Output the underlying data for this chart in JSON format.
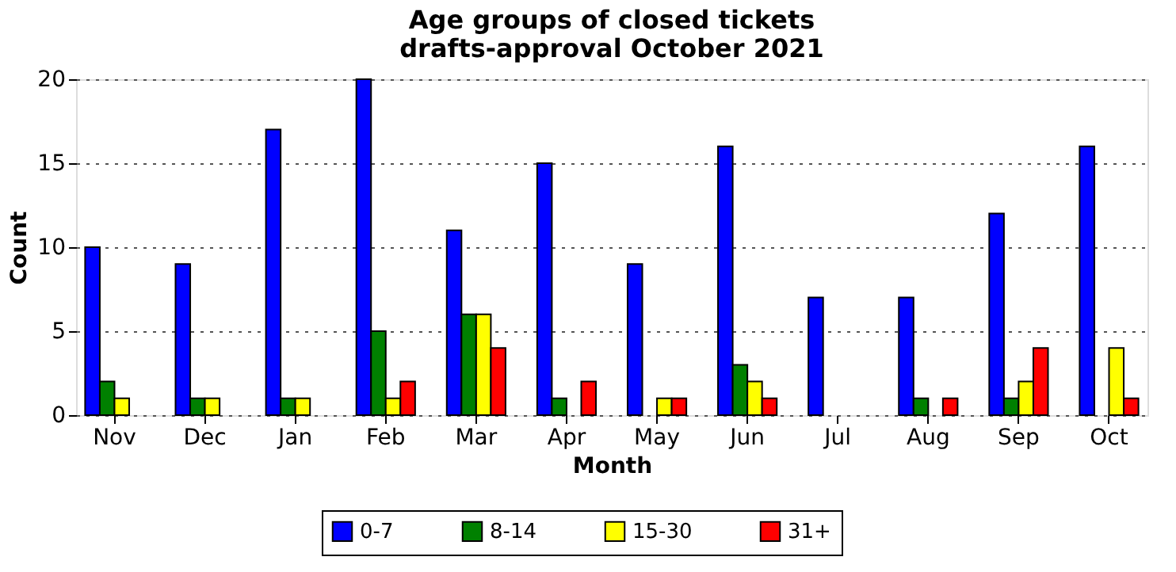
{
  "chart_data": {
    "type": "bar",
    "title": "Age groups of closed tickets\ndrafts-approval October 2021",
    "xlabel": "Month",
    "ylabel": "Count",
    "categories": [
      "Nov",
      "Dec",
      "Jan",
      "Feb",
      "Mar",
      "Apr",
      "May",
      "Jun",
      "Jul",
      "Aug",
      "Sep",
      "Oct"
    ],
    "series": [
      {
        "name": "0-7",
        "color": "#0000ff",
        "values": [
          10,
          9,
          17,
          20,
          11,
          15,
          9,
          16,
          7,
          7,
          12,
          16
        ]
      },
      {
        "name": "8-14",
        "color": "#008000",
        "values": [
          2,
          1,
          1,
          5,
          6,
          1,
          0,
          3,
          0,
          1,
          1,
          0
        ]
      },
      {
        "name": "15-30",
        "color": "#ffff00",
        "values": [
          1,
          1,
          1,
          1,
          6,
          0,
          1,
          2,
          0,
          0,
          2,
          4
        ]
      },
      {
        "name": "31+",
        "color": "#ff0000",
        "values": [
          0,
          0,
          0,
          2,
          4,
          2,
          1,
          1,
          0,
          1,
          4,
          1
        ]
      }
    ],
    "ylim": [
      0,
      20
    ],
    "yticks": [
      0,
      5,
      10,
      15,
      20
    ],
    "grid": "y",
    "legend": "bottom"
  }
}
